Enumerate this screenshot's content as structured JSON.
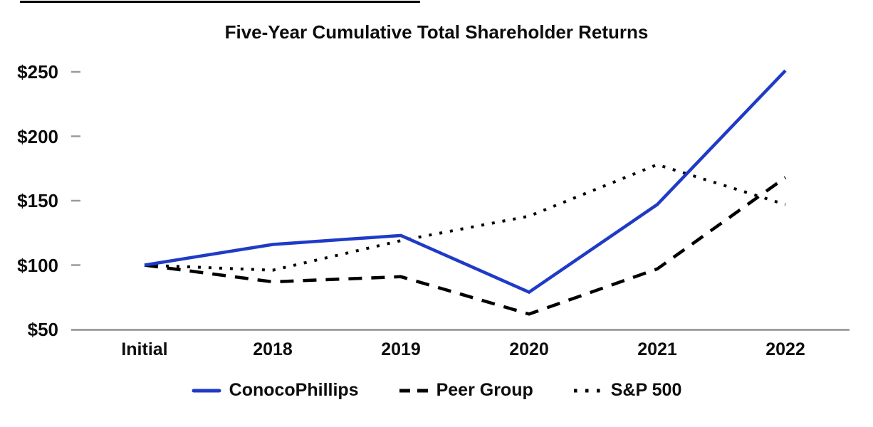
{
  "chart_data": {
    "type": "line",
    "title": "Five-Year Cumulative Total Shareholder Returns",
    "categories": [
      "Initial",
      "2018",
      "2019",
      "2020",
      "2021",
      "2022"
    ],
    "series": [
      {
        "name": "ConocoPhillips",
        "style": "solid",
        "color": "#1F3BC6",
        "values": [
          100,
          116,
          123,
          79,
          147,
          251
        ]
      },
      {
        "name": "Peer Group",
        "style": "dashed",
        "color": "#000000",
        "values": [
          100,
          87,
          91,
          62,
          97,
          168
        ]
      },
      {
        "name": "S&P 500",
        "style": "dotted",
        "color": "#000000",
        "values": [
          100,
          96,
          119,
          138,
          178,
          147
        ]
      }
    ],
    "y_ticks": [
      {
        "label": "$250",
        "value": 250
      },
      {
        "label": "$200",
        "value": 200
      },
      {
        "label": "$150",
        "value": 150
      },
      {
        "label": "$100",
        "value": 100
      },
      {
        "label": "$50",
        "value": 50
      }
    ],
    "ylim": [
      50,
      260
    ],
    "xlabel": "",
    "ylabel": "",
    "grid": false,
    "legend_position": "bottom",
    "baseline_value": 50,
    "axis_color": "#8F8F8F",
    "tick_color": "#9B9B9B"
  }
}
